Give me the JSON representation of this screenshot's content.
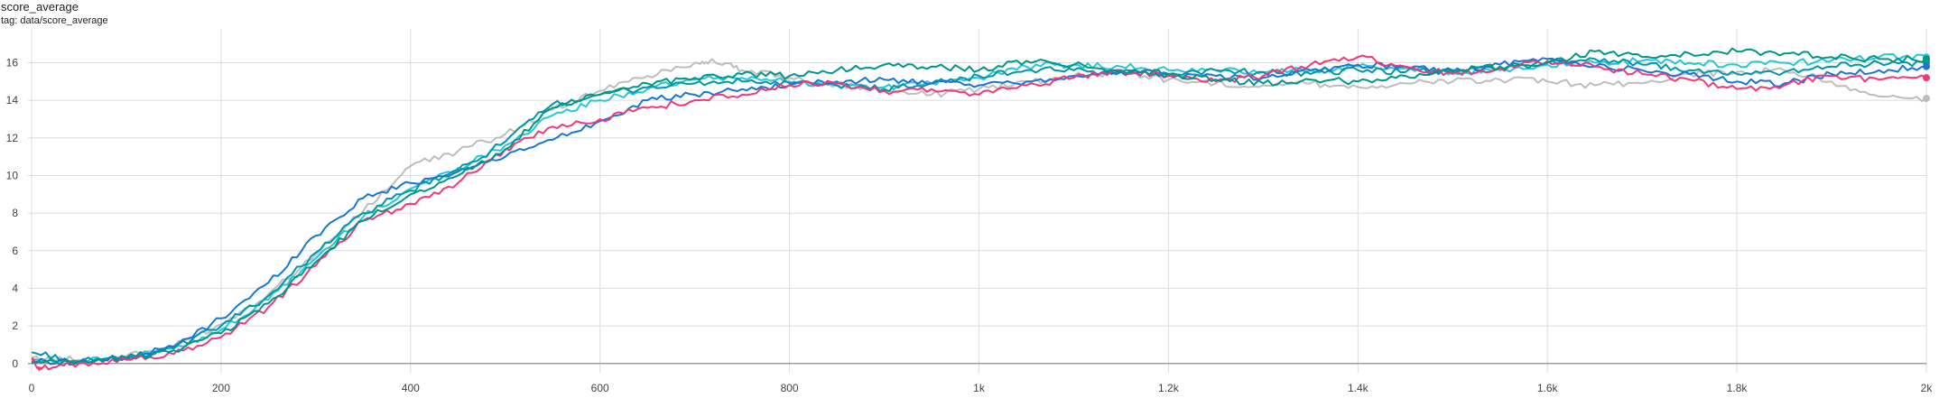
{
  "header": {
    "title": "score_average",
    "tag": "tag: data/score_average"
  },
  "colors": {
    "grid": "#dcdcdc",
    "zero_line": "#9e9e9e",
    "series": [
      "#bdbdbd",
      "#26c6da",
      "#0097a7",
      "#1976d2",
      "#f0387a",
      "#009688"
    ]
  },
  "chart_data": {
    "type": "line",
    "title": "score_average",
    "subtitle": "tag: data/score_average",
    "xlabel": "",
    "ylabel": "",
    "xlim": [
      0,
      2000
    ],
    "ylim": [
      -0.3,
      17.8
    ],
    "grid": true,
    "x_ticks": [
      {
        "value": 0,
        "label": "0"
      },
      {
        "value": 200,
        "label": "200"
      },
      {
        "value": 400,
        "label": "400"
      },
      {
        "value": 600,
        "label": "600"
      },
      {
        "value": 800,
        "label": "800"
      },
      {
        "value": 1000,
        "label": "1k"
      },
      {
        "value": 1200,
        "label": "1.2k"
      },
      {
        "value": 1400,
        "label": "1.4k"
      },
      {
        "value": 1600,
        "label": "1.6k"
      },
      {
        "value": 1800,
        "label": "1.8k"
      },
      {
        "value": 2000,
        "label": "2k"
      }
    ],
    "y_ticks": [
      {
        "value": 0,
        "label": "0"
      },
      {
        "value": 2,
        "label": "2"
      },
      {
        "value": 4,
        "label": "4"
      },
      {
        "value": 6,
        "label": "6"
      },
      {
        "value": 8,
        "label": "8"
      },
      {
        "value": 10,
        "label": "10"
      },
      {
        "value": 12,
        "label": "12"
      },
      {
        "value": 14,
        "label": "14"
      },
      {
        "value": 16,
        "label": "16"
      }
    ],
    "series": [
      {
        "color": "#bdbdbd",
        "x": [
          0,
          50,
          100,
          150,
          200,
          250,
          300,
          350,
          400,
          450,
          500,
          550,
          600,
          650,
          700,
          720,
          750,
          800,
          850,
          900,
          950,
          1000,
          1050,
          1100,
          1150,
          1200,
          1250,
          1300,
          1350,
          1400,
          1450,
          1500,
          1550,
          1600,
          1650,
          1700,
          1750,
          1800,
          1850,
          1900,
          1950,
          2000
        ],
        "y": [
          0.3,
          0.2,
          0.4,
          0.9,
          2.1,
          3.7,
          5.8,
          8.1,
          10.5,
          11.3,
          12.2,
          13.5,
          14.5,
          15.3,
          16.0,
          16.1,
          15.6,
          15.2,
          14.8,
          14.6,
          14.3,
          14.6,
          15.0,
          15.3,
          15.5,
          15.1,
          14.9,
          14.8,
          14.9,
          14.7,
          14.9,
          15.0,
          15.1,
          15.0,
          14.8,
          14.9,
          15.4,
          15.5,
          15.6,
          15.0,
          14.2,
          14.1
        ]
      },
      {
        "color": "#26c6da",
        "x": [
          0,
          50,
          100,
          150,
          200,
          250,
          300,
          350,
          400,
          450,
          500,
          550,
          600,
          650,
          700,
          750,
          800,
          850,
          900,
          950,
          1000,
          1050,
          1100,
          1150,
          1200,
          1250,
          1300,
          1350,
          1400,
          1450,
          1500,
          1550,
          1600,
          1650,
          1700,
          1750,
          1800,
          1850,
          1900,
          1950,
          2000
        ],
        "y": [
          0.2,
          0.1,
          0.3,
          0.8,
          1.8,
          3.4,
          5.6,
          7.8,
          9.3,
          10.4,
          11.6,
          13.2,
          14.0,
          14.6,
          15.1,
          15.2,
          15.0,
          14.8,
          14.7,
          14.9,
          15.2,
          15.8,
          15.9,
          15.8,
          15.6,
          15.6,
          15.5,
          15.6,
          15.8,
          15.7,
          15.5,
          15.6,
          15.9,
          16.0,
          16.1,
          16.0,
          15.9,
          16.0,
          16.1,
          16.3,
          16.3
        ]
      },
      {
        "color": "#0097a7",
        "x": [
          0,
          50,
          100,
          150,
          200,
          250,
          300,
          350,
          400,
          450,
          500,
          550,
          600,
          650,
          700,
          750,
          800,
          850,
          900,
          950,
          1000,
          1050,
          1100,
          1150,
          1200,
          1250,
          1300,
          1350,
          1400,
          1450,
          1500,
          1550,
          1600,
          1650,
          1700,
          1750,
          1800,
          1850,
          1900,
          1950,
          2000
        ],
        "y": [
          0.6,
          0.1,
          0.3,
          0.8,
          2.0,
          3.6,
          5.9,
          8.0,
          9.2,
          10.3,
          11.8,
          13.8,
          14.3,
          14.7,
          14.9,
          15.0,
          14.9,
          14.8,
          14.6,
          14.9,
          15.3,
          15.6,
          15.6,
          15.5,
          15.4,
          15.6,
          15.5,
          15.4,
          15.6,
          15.5,
          15.6,
          15.7,
          16.0,
          16.2,
          15.9,
          15.6,
          15.4,
          15.5,
          15.8,
          16.0,
          16.0
        ]
      },
      {
        "color": "#1976d2",
        "x": [
          0,
          50,
          100,
          150,
          200,
          250,
          300,
          350,
          400,
          450,
          500,
          550,
          600,
          650,
          700,
          750,
          800,
          850,
          900,
          950,
          1000,
          1050,
          1100,
          1150,
          1200,
          1250,
          1300,
          1350,
          1400,
          1450,
          1500,
          1550,
          1600,
          1650,
          1700,
          1750,
          1800,
          1850,
          1900,
          1950,
          2000
        ],
        "y": [
          0.1,
          0.1,
          0.3,
          0.9,
          2.4,
          4.3,
          6.8,
          8.8,
          9.6,
          10.2,
          11.0,
          11.9,
          12.9,
          14.0,
          14.3,
          14.6,
          14.8,
          15.0,
          15.1,
          14.9,
          14.8,
          15.0,
          15.3,
          15.5,
          15.4,
          15.3,
          15.2,
          15.6,
          15.9,
          15.8,
          15.5,
          15.9,
          16.2,
          15.8,
          15.6,
          15.4,
          15.0,
          14.9,
          15.4,
          15.6,
          15.8
        ]
      },
      {
        "color": "#f0387a",
        "x": [
          0,
          10,
          50,
          100,
          150,
          200,
          250,
          300,
          350,
          400,
          450,
          500,
          550,
          600,
          650,
          700,
          750,
          800,
          850,
          900,
          950,
          1000,
          1050,
          1100,
          1150,
          1200,
          1250,
          1300,
          1350,
          1400,
          1450,
          1500,
          1550,
          1600,
          1650,
          1700,
          1750,
          1800,
          1850,
          1900,
          1950,
          2000
        ],
        "y": [
          0.2,
          -0.3,
          0.0,
          0.2,
          0.5,
          1.4,
          3.0,
          5.2,
          7.6,
          8.5,
          9.6,
          11.4,
          12.6,
          13.0,
          13.6,
          14.0,
          14.3,
          14.8,
          14.9,
          14.5,
          14.6,
          14.3,
          14.8,
          15.2,
          15.6,
          15.3,
          15.0,
          15.3,
          15.9,
          16.3,
          15.8,
          15.4,
          15.7,
          16.1,
          15.8,
          15.4,
          15.1,
          14.6,
          14.8,
          15.3,
          15.1,
          15.2
        ]
      },
      {
        "color": "#009688",
        "x": [
          0,
          50,
          100,
          150,
          200,
          250,
          300,
          350,
          400,
          450,
          500,
          550,
          600,
          650,
          700,
          750,
          800,
          850,
          900,
          950,
          1000,
          1050,
          1100,
          1150,
          1200,
          1250,
          1300,
          1350,
          1400,
          1450,
          1500,
          1550,
          1600,
          1650,
          1700,
          1750,
          1800,
          1850,
          1900,
          1950,
          2000
        ],
        "y": [
          0.0,
          0.1,
          0.3,
          0.7,
          1.6,
          3.2,
          5.4,
          7.6,
          9.0,
          10.0,
          11.4,
          13.6,
          14.3,
          14.9,
          15.2,
          15.4,
          15.3,
          15.6,
          15.9,
          15.8,
          15.6,
          16.1,
          15.9,
          15.6,
          15.4,
          15.1,
          14.9,
          15.1,
          15.0,
          15.3,
          15.6,
          15.8,
          16.0,
          16.6,
          16.3,
          16.5,
          16.6,
          16.5,
          16.3,
          16.2,
          16.2
        ]
      }
    ]
  }
}
